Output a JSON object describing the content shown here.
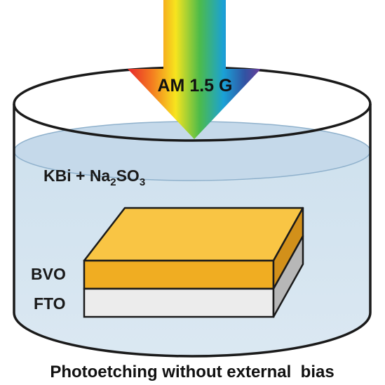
{
  "diagram": {
    "light_source_label": "AM 1.5 G",
    "electrolyte_label": "KBi + Na",
    "electrolyte_sub_1": "2",
    "electrolyte_mid": "SO",
    "electrolyte_sub_2": "3",
    "layer_top_label": "BVO",
    "layer_bottom_label": "FTO",
    "caption": "Photoetching without external  bias"
  },
  "colors": {
    "liquid_fill": "#d7e6f1",
    "liquid_surface": "#c4d9ea",
    "bvo_top": "#f9c544",
    "bvo_front": "#f0ad22",
    "bvo_side": "#d2901a",
    "fto_front": "#ececec",
    "fto_side": "#b7b7b7",
    "outline": "#1a1a1a"
  }
}
